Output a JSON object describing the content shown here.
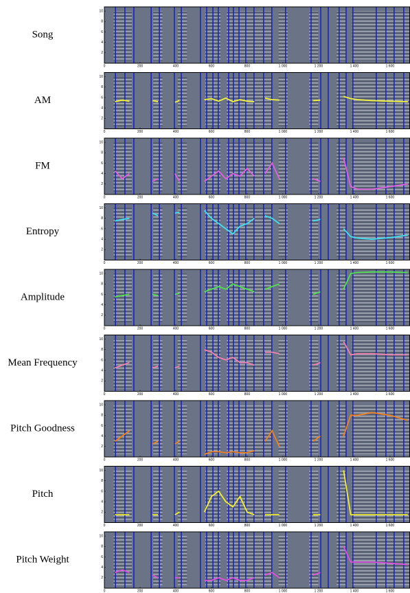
{
  "x_axis": {
    "xlim": [
      0,
      1712
    ],
    "xticks": [
      0,
      200,
      400,
      600,
      800,
      {
        "value": 1000,
        "label": "1 000"
      },
      {
        "value": 1200,
        "label": "1 200"
      },
      {
        "value": 1400,
        "label": "1 400"
      },
      {
        "value": 1600,
        "label": "1 600"
      }
    ]
  },
  "y_axis": {
    "ylim": [
      0,
      10.8
    ],
    "yticks": [
      2,
      4,
      6,
      8,
      10
    ]
  },
  "boundaries": [
    62,
    115,
    165,
    262,
    308,
    392,
    431,
    538,
    573,
    608,
    638,
    696,
    723,
    754,
    792,
    838,
    892,
    938,
    1015,
    1158,
    1212,
    1254,
    1315,
    1354,
    1392,
    1523,
    1577,
    1623,
    1677
  ],
  "trace_x": [
    60,
    100,
    140,
    170,
    270,
    300,
    330,
    395,
    420,
    445,
    560,
    600,
    640,
    680,
    720,
    760,
    800,
    840,
    870,
    900,
    940,
    980,
    1010,
    1170,
    1210,
    1250,
    1340,
    1380,
    1420,
    1500,
    1600,
    1700
  ],
  "panels": [
    {
      "label": "Song"
    },
    {
      "label": "AM",
      "color": "#f5f53c",
      "values": [
        5.2,
        5.5,
        5.3,
        null,
        5.4,
        5.2,
        null,
        5.1,
        5.4,
        null,
        5.6,
        5.8,
        5.3,
        5.9,
        5.2,
        5.6,
        5.3,
        5.2,
        null,
        5.9,
        5.6,
        5.5,
        null,
        5.4,
        5.5,
        null,
        6.2,
        5.8,
        5.6,
        5.4,
        5.3,
        5.2
      ]
    },
    {
      "label": "FM",
      "color": "#e060e0",
      "values": [
        4.5,
        3,
        4,
        null,
        2.5,
        3,
        null,
        4,
        2.5,
        null,
        2.5,
        3.5,
        4.5,
        3,
        4,
        3.5,
        5,
        3.5,
        null,
        4,
        6,
        3,
        null,
        3,
        2.5,
        null,
        7,
        1.5,
        1,
        1,
        1.5,
        2
      ]
    },
    {
      "label": "Entropy",
      "color": "#40e0f0",
      "values": [
        7.5,
        7.8,
        8,
        null,
        9,
        8.5,
        null,
        9,
        9.2,
        null,
        9.5,
        8,
        7,
        6,
        5,
        6.5,
        7,
        8,
        null,
        8.5,
        8,
        7,
        null,
        7.5,
        7.8,
        null,
        6,
        4.5,
        4.2,
        4,
        4.3,
        4.8
      ]
    },
    {
      "label": "Amplitude",
      "color": "#50e050",
      "values": [
        5.5,
        5.8,
        6,
        null,
        6,
        5.8,
        null,
        6,
        6.2,
        null,
        6.5,
        7,
        7.5,
        7,
        8,
        7.5,
        7,
        6.5,
        null,
        7,
        7.5,
        8,
        null,
        6,
        6.5,
        null,
        7,
        10,
        10.2,
        10.3,
        10.3,
        10.2
      ]
    },
    {
      "label": "Mean Frequency",
      "color": "#f080b0",
      "values": [
        4.5,
        5,
        5.5,
        null,
        4.5,
        4.8,
        null,
        4.5,
        4.8,
        null,
        8,
        7.5,
        6.5,
        6,
        6.5,
        5.5,
        5.5,
        5,
        null,
        7.5,
        7.5,
        7.2,
        null,
        5,
        5.5,
        null,
        9.5,
        7,
        7.2,
        7.2,
        7,
        7
      ]
    },
    {
      "label": "Pitch Goodness",
      "color": "#f08020",
      "values": [
        3,
        4,
        5,
        null,
        2.5,
        3,
        null,
        2.5,
        3,
        null,
        0.5,
        1,
        1,
        0.8,
        1,
        0.8,
        0.8,
        1.2,
        null,
        3,
        5,
        2,
        null,
        3,
        4,
        null,
        4,
        8,
        8,
        8.5,
        8,
        7
      ]
    },
    {
      "label": "Pitch",
      "color": "#f0f030",
      "values": [
        1.5,
        1.5,
        1.5,
        null,
        1.5,
        1.5,
        null,
        1.5,
        2,
        null,
        2,
        5,
        6,
        4,
        3,
        5,
        2,
        1.5,
        null,
        1.5,
        1.5,
        1.5,
        null,
        1.5,
        1.5,
        null,
        10,
        1.5,
        1.5,
        1.5,
        1.5,
        1.5
      ]
    },
    {
      "label": "Pitch Weight",
      "color": "#e050e0",
      "values": [
        3,
        3.5,
        3,
        null,
        2.5,
        2,
        null,
        2,
        2,
        null,
        1.5,
        1.5,
        2,
        1.5,
        2,
        1.5,
        1.5,
        2,
        null,
        2.5,
        3,
        2,
        null,
        2.5,
        3,
        null,
        8,
        5,
        5,
        5,
        4.8,
        4.5
      ]
    }
  ]
}
